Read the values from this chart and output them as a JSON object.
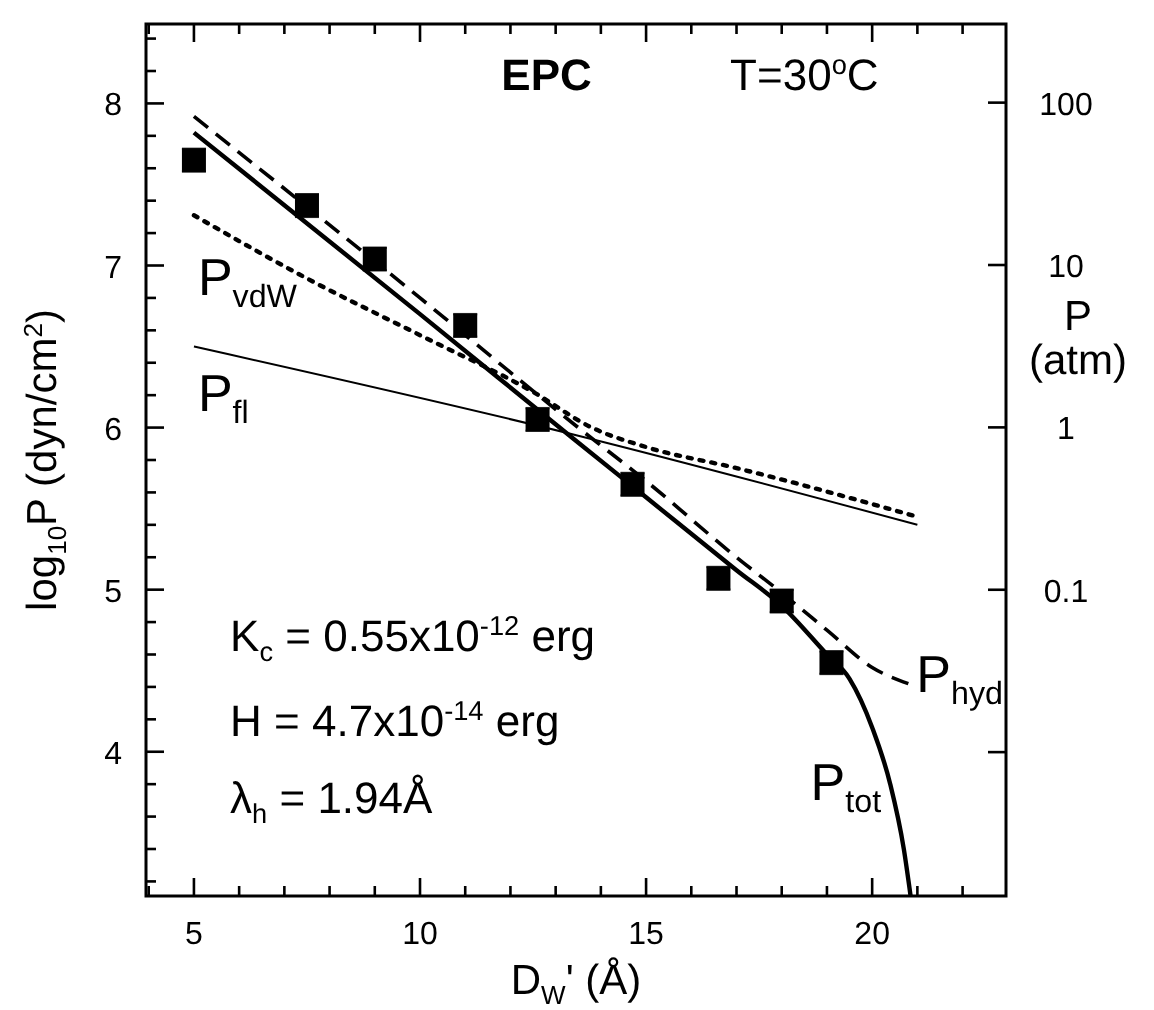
{
  "chart_data": {
    "type": "line",
    "xlabel": "D$_{W}$' (Å)",
    "ylabel": "log$_{10}$P (dyn/cm$^{2}$)",
    "y2label": "P (atm)",
    "xlim": [
      3.94,
      22.96
    ],
    "ylim": [
      3.11,
      8.49
    ],
    "y2lim": [
      0.0013,
      305
    ],
    "log": "y2",
    "legend": false,
    "grid": false,
    "xticks": [
      {
        "value": 4,
        "label": null
      },
      5,
      {
        "value": 6,
        "label": null
      },
      {
        "value": 7,
        "label": null
      },
      {
        "value": 8,
        "label": null
      },
      {
        "value": 9,
        "label": null
      },
      10,
      {
        "value": 11,
        "label": null
      },
      {
        "value": 12,
        "label": null
      },
      {
        "value": 13,
        "label": null
      },
      {
        "value": 14,
        "label": null
      },
      15,
      {
        "value": 16,
        "label": null
      },
      {
        "value": 17,
        "label": null
      },
      {
        "value": 18,
        "label": null
      },
      {
        "value": 19,
        "label": null
      },
      20,
      {
        "value": 21,
        "label": null
      },
      {
        "value": 22,
        "label": null
      }
    ],
    "yticks": [
      {
        "value": 3.2,
        "label": null
      },
      {
        "value": 3.4,
        "label": null
      },
      {
        "value": 3.6,
        "label": null
      },
      {
        "value": 3.8,
        "label": null
      },
      4,
      {
        "value": 4.2,
        "label": null
      },
      {
        "value": 4.4,
        "label": null
      },
      {
        "value": 4.6,
        "label": null
      },
      {
        "value": 4.8,
        "label": null
      },
      5,
      {
        "value": 5.2,
        "label": null
      },
      {
        "value": 5.4,
        "label": null
      },
      {
        "value": 5.6,
        "label": null
      },
      {
        "value": 5.8,
        "label": null
      },
      6,
      {
        "value": 6.2,
        "label": null
      },
      {
        "value": 6.4,
        "label": null
      },
      {
        "value": 6.6,
        "label": null
      },
      {
        "value": 6.8,
        "label": null
      },
      7,
      {
        "value": 7.2,
        "label": null
      },
      {
        "value": 7.4,
        "label": null
      },
      {
        "value": 7.6,
        "label": null
      },
      {
        "value": 7.8,
        "label": null
      },
      8,
      {
        "value": 8.2,
        "label": null
      },
      {
        "value": 8.4,
        "label": null
      }
    ],
    "y2ticks": [
      {
        "value": 0.01,
        "label": null
      },
      0.1,
      1,
      10,
      100
    ],
    "annotations": [
      "EPC",
      "T=30$^{o}$C",
      "K$_{c}$ = 0.55x10$^{-12}$ erg",
      "H = 4.7x10$^{-14}$ erg",
      "λ$_{h}$ = 1.94Å"
    ],
    "series": [
      {
        "type": "scatter",
        "marker": "square",
        "color": "#000000",
        "x": [
          5.0,
          7.5,
          9.0,
          11.0,
          12.6,
          14.7,
          16.6,
          18.0,
          19.1
        ],
        "values": [
          7.65,
          7.37,
          7.04,
          6.63,
          6.05,
          5.65,
          5.07,
          4.93,
          4.55
        ],
        "errors": [
          0.07,
          0.07,
          0.07,
          0.07,
          0.07,
          0.07,
          0.07,
          0.07,
          0.07
        ]
      },
      {
        "name": "P$_{vdW}$",
        "line_style": "dotted",
        "color": "#000000",
        "x": [
          5,
          7.5,
          10,
          12.5,
          13.8,
          15,
          17,
          21
        ],
        "values": [
          7.31,
          6.92,
          6.57,
          6.22,
          6.0,
          5.88,
          5.75,
          5.45
        ]
      },
      {
        "name": "P$_{fl}$",
        "line_style": "solid",
        "color": "#000000",
        "x": [
          5,
          13.5,
          21
        ],
        "values": [
          6.5,
          5.95,
          5.4
        ]
      },
      {
        "name": "P$_{hyd}$",
        "line_style": "dashed",
        "color": "#000000",
        "x": [
          5,
          10,
          13.5,
          15,
          17,
          18,
          19,
          20,
          20.8
        ],
        "values": [
          7.92,
          6.8,
          6.0,
          5.67,
          5.2,
          4.98,
          4.75,
          4.52,
          4.42
        ]
      },
      {
        "name": "P$_{tot}$",
        "line_style": "solid",
        "color": "#000000",
        "x": [
          5,
          10,
          13.4,
          15,
          17,
          18,
          19,
          19.5,
          20,
          20.4,
          20.7,
          20.85
        ],
        "values": [
          7.82,
          6.7,
          5.93,
          5.57,
          5.12,
          4.9,
          4.6,
          4.45,
          4.15,
          3.8,
          3.4,
          3.11
        ]
      }
    ]
  }
}
